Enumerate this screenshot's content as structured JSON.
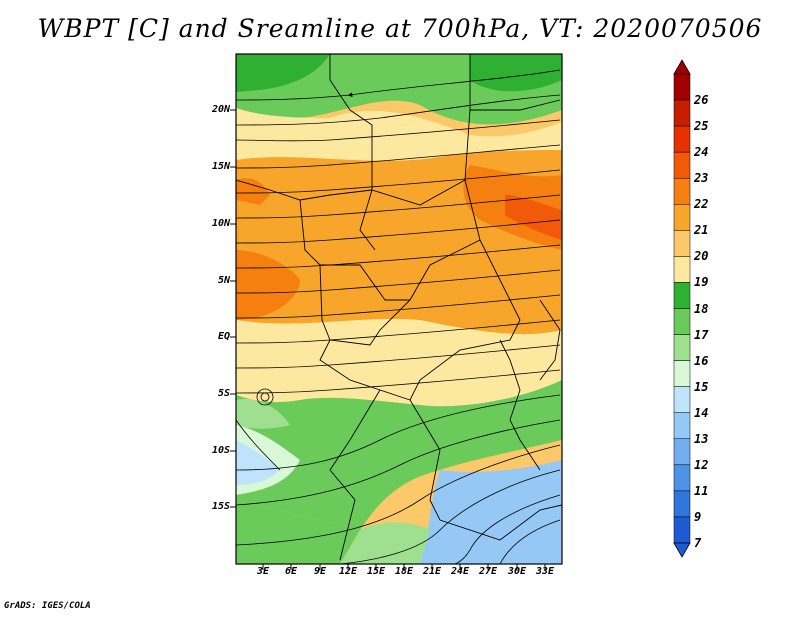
{
  "title": "WBPT [C] and Sreamline at 700hPa, VT: 2020070506",
  "footer": "GrADS: IGES/COLA",
  "lat_labels": [
    "20N",
    "15N",
    "10N",
    "5N",
    "EQ",
    "5S",
    "10S",
    "15S"
  ],
  "lon_labels": [
    "3E",
    "6E",
    "9E",
    "12E",
    "15E",
    "18E",
    "21E",
    "24E",
    "27E",
    "30E",
    "33E"
  ],
  "colorbar": {
    "labels": [
      "26",
      "25",
      "24",
      "23",
      "22",
      "21",
      "20",
      "19",
      "18",
      "17",
      "16",
      "15",
      "14",
      "13",
      "12",
      "11",
      "9",
      "7"
    ],
    "colors": [
      "#a00000",
      "#c81e00",
      "#e63200",
      "#f25a0a",
      "#f5800f",
      "#f7a52b",
      "#fbc86a",
      "#fde8a0",
      "#2fb032",
      "#6acb5a",
      "#9fe090",
      "#d8f8d8",
      "#bfe3fb",
      "#96c8f5",
      "#73aff0",
      "#4f93e8",
      "#2f75dc",
      "#1e5ad2"
    ]
  },
  "map": {
    "projection": "lat-lon",
    "lat_range": [
      -20,
      25
    ],
    "lon_range": [
      0,
      36
    ],
    "variable": "Wet-bulb potential temperature (C)",
    "overlay": "700hPa streamlines"
  }
}
